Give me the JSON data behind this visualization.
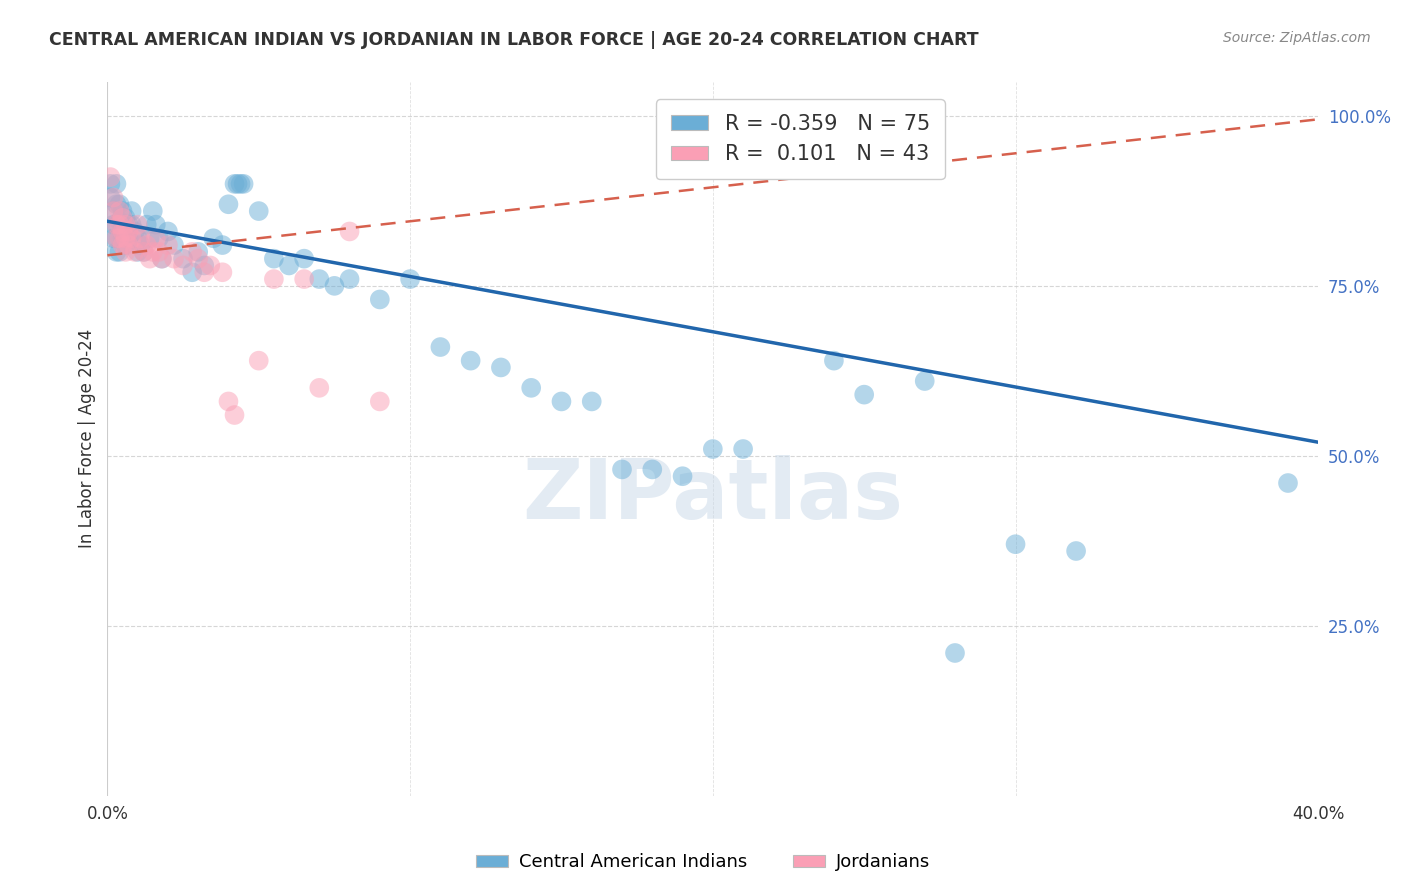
{
  "title": "CENTRAL AMERICAN INDIAN VS JORDANIAN IN LABOR FORCE | AGE 20-24 CORRELATION CHART",
  "source": "Source: ZipAtlas.com",
  "ylabel": "In Labor Force | Age 20-24",
  "xlabel_blue": "Central American Indians",
  "xlabel_pink": "Jordanians",
  "x_min": 0.0,
  "x_max": 0.4,
  "y_min": 0.0,
  "y_max": 1.05,
  "y_ticks": [
    0.25,
    0.5,
    0.75,
    1.0
  ],
  "y_tick_labels": [
    "25.0%",
    "50.0%",
    "75.0%",
    "100.0%"
  ],
  "x_ticks": [
    0.0,
    0.1,
    0.2,
    0.3,
    0.4
  ],
  "x_tick_labels": [
    "0.0%",
    "",
    "",
    "",
    "40.0%"
  ],
  "R_blue": -0.359,
  "N_blue": 75,
  "R_pink": 0.101,
  "N_pink": 43,
  "blue_color": "#6baed6",
  "pink_color": "#fa9fb5",
  "line_blue": "#2166ac",
  "line_pink": "#d6604d",
  "watermark": "ZIPatlas",
  "blue_scatter": [
    [
      0.001,
      0.9
    ],
    [
      0.001,
      0.88
    ],
    [
      0.002,
      0.86
    ],
    [
      0.002,
      0.84
    ],
    [
      0.002,
      0.82
    ],
    [
      0.003,
      0.9
    ],
    [
      0.003,
      0.87
    ],
    [
      0.003,
      0.84
    ],
    [
      0.003,
      0.82
    ],
    [
      0.003,
      0.8
    ],
    [
      0.004,
      0.87
    ],
    [
      0.004,
      0.845
    ],
    [
      0.004,
      0.82
    ],
    [
      0.004,
      0.8
    ],
    [
      0.005,
      0.86
    ],
    [
      0.005,
      0.84
    ],
    [
      0.005,
      0.82
    ],
    [
      0.006,
      0.85
    ],
    [
      0.006,
      0.83
    ],
    [
      0.006,
      0.81
    ],
    [
      0.007,
      0.84
    ],
    [
      0.007,
      0.82
    ],
    [
      0.008,
      0.86
    ],
    [
      0.008,
      0.84
    ],
    [
      0.009,
      0.83
    ],
    [
      0.01,
      0.82
    ],
    [
      0.01,
      0.8
    ],
    [
      0.011,
      0.81
    ],
    [
      0.012,
      0.8
    ],
    [
      0.013,
      0.84
    ],
    [
      0.014,
      0.82
    ],
    [
      0.015,
      0.86
    ],
    [
      0.016,
      0.84
    ],
    [
      0.017,
      0.82
    ],
    [
      0.018,
      0.79
    ],
    [
      0.02,
      0.83
    ],
    [
      0.022,
      0.81
    ],
    [
      0.025,
      0.79
    ],
    [
      0.028,
      0.77
    ],
    [
      0.03,
      0.8
    ],
    [
      0.032,
      0.78
    ],
    [
      0.035,
      0.82
    ],
    [
      0.038,
      0.81
    ],
    [
      0.04,
      0.87
    ],
    [
      0.042,
      0.9
    ],
    [
      0.043,
      0.9
    ],
    [
      0.044,
      0.9
    ],
    [
      0.045,
      0.9
    ],
    [
      0.05,
      0.86
    ],
    [
      0.055,
      0.79
    ],
    [
      0.06,
      0.78
    ],
    [
      0.065,
      0.79
    ],
    [
      0.07,
      0.76
    ],
    [
      0.075,
      0.75
    ],
    [
      0.08,
      0.76
    ],
    [
      0.09,
      0.73
    ],
    [
      0.1,
      0.76
    ],
    [
      0.11,
      0.66
    ],
    [
      0.12,
      0.64
    ],
    [
      0.13,
      0.63
    ],
    [
      0.14,
      0.6
    ],
    [
      0.15,
      0.58
    ],
    [
      0.16,
      0.58
    ],
    [
      0.17,
      0.48
    ],
    [
      0.18,
      0.48
    ],
    [
      0.19,
      0.47
    ],
    [
      0.2,
      0.51
    ],
    [
      0.21,
      0.51
    ],
    [
      0.24,
      0.64
    ],
    [
      0.25,
      0.59
    ],
    [
      0.27,
      0.61
    ],
    [
      0.28,
      0.21
    ],
    [
      0.3,
      0.37
    ],
    [
      0.32,
      0.36
    ],
    [
      0.39,
      0.46
    ]
  ],
  "pink_scatter": [
    [
      0.001,
      0.91
    ],
    [
      0.002,
      0.88
    ],
    [
      0.002,
      0.86
    ],
    [
      0.003,
      0.84
    ],
    [
      0.003,
      0.82
    ],
    [
      0.004,
      0.86
    ],
    [
      0.004,
      0.84
    ],
    [
      0.004,
      0.82
    ],
    [
      0.005,
      0.85
    ],
    [
      0.005,
      0.83
    ],
    [
      0.005,
      0.81
    ],
    [
      0.006,
      0.84
    ],
    [
      0.006,
      0.82
    ],
    [
      0.006,
      0.8
    ],
    [
      0.007,
      0.83
    ],
    [
      0.007,
      0.81
    ],
    [
      0.008,
      0.82
    ],
    [
      0.009,
      0.8
    ],
    [
      0.01,
      0.84
    ],
    [
      0.011,
      0.82
    ],
    [
      0.012,
      0.8
    ],
    [
      0.013,
      0.81
    ],
    [
      0.014,
      0.79
    ],
    [
      0.015,
      0.8
    ],
    [
      0.016,
      0.82
    ],
    [
      0.017,
      0.8
    ],
    [
      0.018,
      0.79
    ],
    [
      0.02,
      0.81
    ],
    [
      0.022,
      0.79
    ],
    [
      0.025,
      0.78
    ],
    [
      0.028,
      0.8
    ],
    [
      0.03,
      0.79
    ],
    [
      0.032,
      0.77
    ],
    [
      0.034,
      0.78
    ],
    [
      0.038,
      0.77
    ],
    [
      0.04,
      0.58
    ],
    [
      0.042,
      0.56
    ],
    [
      0.05,
      0.64
    ],
    [
      0.055,
      0.76
    ],
    [
      0.065,
      0.76
    ],
    [
      0.07,
      0.6
    ],
    [
      0.08,
      0.83
    ],
    [
      0.09,
      0.58
    ]
  ],
  "blue_line_x": [
    0.0,
    0.4
  ],
  "blue_line_y": [
    0.845,
    0.52
  ],
  "pink_line_x": [
    0.0,
    0.4
  ],
  "pink_line_y": [
    0.795,
    0.995
  ]
}
